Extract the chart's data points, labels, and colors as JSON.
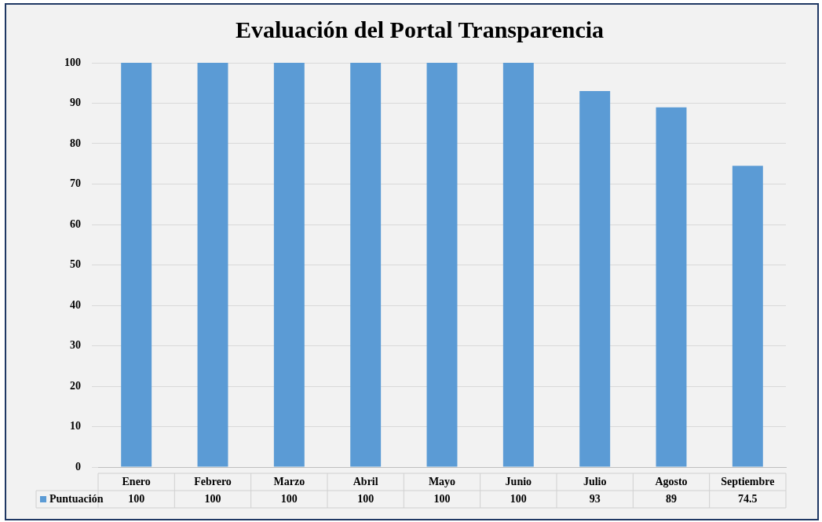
{
  "chart_data": {
    "type": "bar",
    "title": "Evaluación del Portal Transparencia",
    "categories": [
      "Enero",
      "Febrero",
      "Marzo",
      "Abril",
      "Mayo",
      "Junio",
      "Julio",
      "Agosto",
      "Septiembre"
    ],
    "series": [
      {
        "name": "Puntuación",
        "color": "#5b9bd5",
        "values": [
          100,
          100,
          100,
          100,
          100,
          100,
          93,
          89,
          74.5
        ]
      }
    ],
    "ylim": [
      0,
      100
    ],
    "yticks": [
      0,
      10,
      20,
      30,
      40,
      50,
      60,
      70,
      80,
      90,
      100
    ],
    "grid": "y",
    "legend": "bottom",
    "data_labels": true
  }
}
